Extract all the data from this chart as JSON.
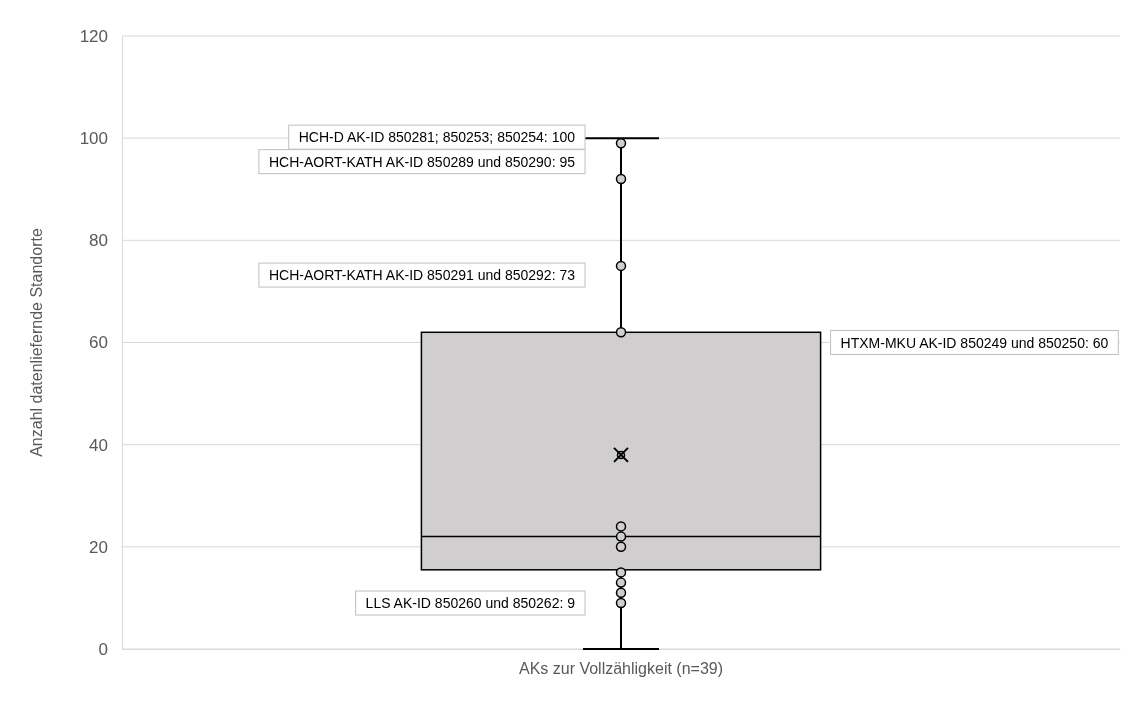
{
  "chart_data": {
    "type": "box",
    "ylabel": "Anzahl datenliefernde Standorte",
    "categories": [
      "AKs zur Vollzähligkeit (n=39)"
    ],
    "ylim": [
      0,
      120
    ],
    "yticks": [
      0,
      20,
      40,
      60,
      80,
      100,
      120
    ],
    "grid": "y",
    "color": "#d0cece",
    "boxes": [
      {
        "low": 0,
        "q1": 15.5,
        "median": 22,
        "q3": 62,
        "high": 100,
        "mean": 38
      }
    ],
    "series": [
      {
        "type": "scatter",
        "color": "#d0cece",
        "marker": "circle",
        "x": [
          "AKs zur Vollzähligkeit (n=39)",
          "AKs zur Vollzähligkeit (n=39)",
          "AKs zur Vollzähligkeit (n=39)",
          "AKs zur Vollzähligkeit (n=39)",
          "AKs zur Vollzähligkeit (n=39)",
          "AKs zur Vollzähligkeit (n=39)",
          "AKs zur Vollzähligkeit (n=39)",
          "AKs zur Vollzähligkeit (n=39)",
          "AKs zur Vollzähligkeit (n=39)",
          "AKs zur Vollzähligkeit (n=39)",
          "AKs zur Vollzähligkeit (n=39)"
        ],
        "values": [
          99,
          92,
          75,
          62,
          24,
          22,
          20,
          15,
          13,
          11,
          9
        ]
      }
    ],
    "annotations": [
      "HCH-D AK-ID 850281; 850253; 850254: 100",
      "HCH-AORT-KATH AK-ID 850289 und 850290: 95",
      "HCH-AORT-KATH AK-ID 850291 und 850292: 73",
      "HTXM-MKU AK-ID 850249 und 850250: 60",
      "LLS AK-ID 850260 und 850262: 9"
    ]
  }
}
